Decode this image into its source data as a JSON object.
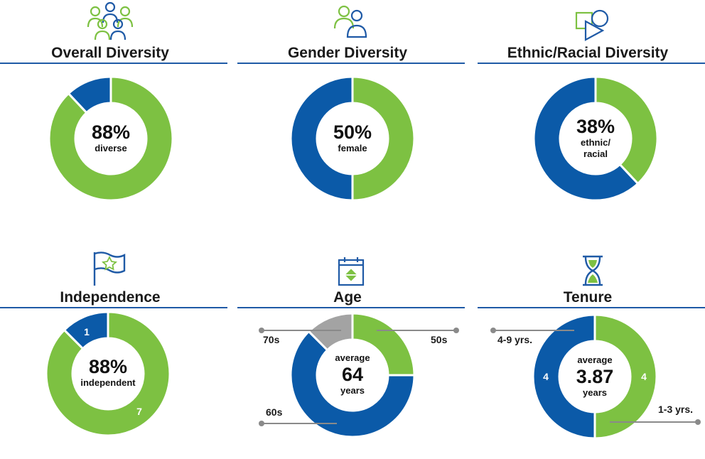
{
  "colors": {
    "green": "#7dc142",
    "blue": "#0b5aa8",
    "gray": "#a3a3a3"
  },
  "chart_data": [
    {
      "type": "pie",
      "title": "Overall Diversity",
      "slices": [
        {
          "label": "diverse",
          "value": 88,
          "color": "#7dc142"
        },
        {
          "label": "",
          "value": 12,
          "color": "#0b5aa8"
        }
      ],
      "center_value": "88%",
      "center_label": "diverse",
      "icon": "people-group-icon"
    },
    {
      "type": "pie",
      "title": "Gender Diversity",
      "slices": [
        {
          "label": "female",
          "value": 50,
          "color": "#7dc142"
        },
        {
          "label": "",
          "value": 50,
          "color": "#0b5aa8"
        }
      ],
      "center_value": "50%",
      "center_label": "female",
      "icon": "two-people-icon"
    },
    {
      "type": "pie",
      "title": "Ethnic/Racial Diversity",
      "slices": [
        {
          "label": "ethnic/racial",
          "value": 38,
          "color": "#7dc142"
        },
        {
          "label": "",
          "value": 62,
          "color": "#0b5aa8"
        }
      ],
      "center_value": "38%",
      "center_label_lines": [
        "ethnic/",
        "racial"
      ],
      "icon": "shapes-icon"
    },
    {
      "type": "pie",
      "title": "Independence",
      "slices": [
        {
          "label": "7",
          "value": 7,
          "color": "#7dc142"
        },
        {
          "label": "1",
          "value": 1,
          "color": "#0b5aa8"
        }
      ],
      "center_value": "88%",
      "center_label": "independent",
      "icon": "flag-star-icon"
    },
    {
      "type": "pie",
      "title": "Age",
      "slices": [
        {
          "label": "50s",
          "value": 2,
          "color": "#7dc142"
        },
        {
          "label": "60s",
          "value": 5,
          "color": "#0b5aa8"
        },
        {
          "label": "70s",
          "value": 1,
          "color": "#a3a3a3"
        }
      ],
      "center_top": "average",
      "center_value": "64",
      "center_bottom": "years",
      "icon": "calendar-icon"
    },
    {
      "type": "pie",
      "title": "Tenure",
      "slices": [
        {
          "label": "1-3 yrs.",
          "value": 4,
          "color": "#7dc142",
          "count_label": "4"
        },
        {
          "label": "4-9 yrs.",
          "value": 4,
          "color": "#0b5aa8",
          "count_label": "4"
        }
      ],
      "center_top": "average",
      "center_value": "3.87",
      "center_bottom": "years",
      "icon": "hourglass-icon"
    }
  ]
}
